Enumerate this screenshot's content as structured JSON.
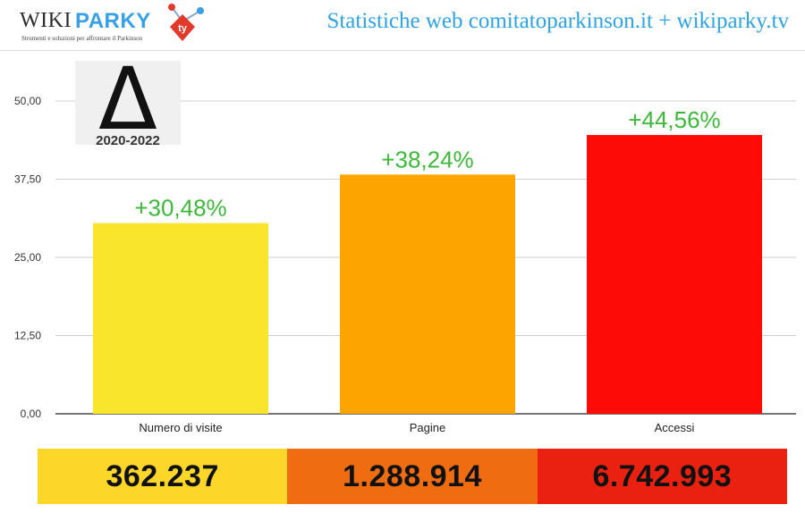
{
  "header": {
    "logo_wiki": "WIKI",
    "logo_parky": "PARKY",
    "logo_tagline": "Strumenti e soluzioni per affrontare il Parkinson",
    "logo_mark_text": "ty",
    "site_title": "Statistiche web comitatoparkinson.it + wikiparky.tv"
  },
  "delta_badge": {
    "symbol": "Δ",
    "period": "2020-2022"
  },
  "colors": {
    "title_blue": "#2fa3e6",
    "label_green": "#3db83a",
    "bar_1": "#f8e52c",
    "bar_2": "#fea400",
    "bar_3": "#fd0b06"
  },
  "chart_data": {
    "type": "bar",
    "categories": [
      "Numero di visite",
      "Pagine",
      "Accessi"
    ],
    "values": [
      30.48,
      38.24,
      44.56
    ],
    "data_labels": [
      "+30,48%",
      "+38,24%",
      "+44,56%"
    ],
    "bar_colors": [
      "#f8e52c",
      "#fea400",
      "#fd0b06"
    ],
    "y_ticks": [
      "0,00",
      "12,50",
      "25,00",
      "37,50",
      "50,00"
    ],
    "y_tick_values": [
      0,
      12.5,
      25,
      37.5,
      50
    ],
    "ylim": [
      0,
      55
    ],
    "grid": true,
    "title": "",
    "xlabel": "",
    "ylabel": ""
  },
  "totals": [
    {
      "value": "362.237"
    },
    {
      "value": "1.288.914"
    },
    {
      "value": "6.742.993"
    }
  ]
}
